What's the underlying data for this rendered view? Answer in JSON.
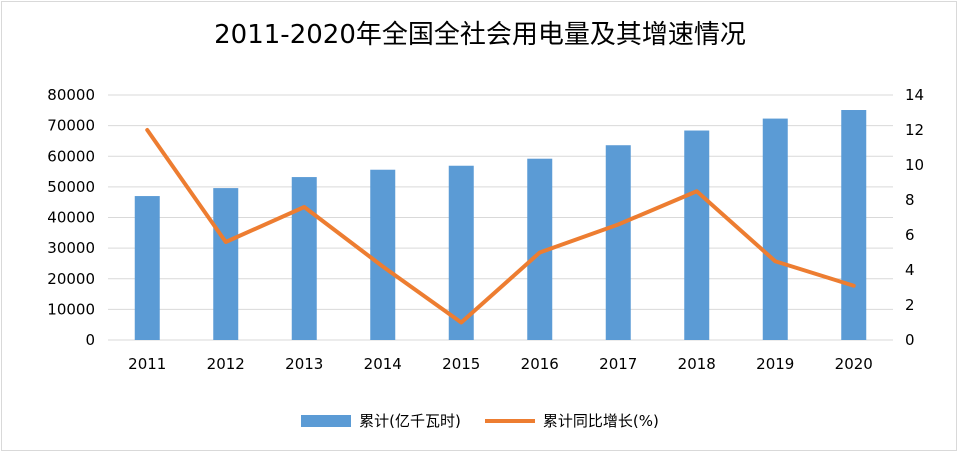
{
  "chart_data": {
    "type": "bar+line",
    "title": "2011-2020年全国全社会用电量及其增速情况",
    "categories": [
      "2011",
      "2012",
      "2013",
      "2014",
      "2015",
      "2016",
      "2017",
      "2018",
      "2019",
      "2020"
    ],
    "series": [
      {
        "name": "累计(亿千瓦时)",
        "type": "bar",
        "axis": "left",
        "color": "#5b9bd5",
        "values": [
          47000,
          49600,
          53200,
          55600,
          56900,
          59200,
          63600,
          68400,
          72300,
          75100
        ]
      },
      {
        "name": "累计同比增长(%)",
        "type": "line",
        "axis": "right",
        "color": "#ed7d31",
        "values": [
          12.0,
          5.6,
          7.6,
          4.2,
          1.0,
          5.0,
          6.6,
          8.5,
          4.5,
          3.1
        ]
      }
    ],
    "y_left": {
      "min": 0,
      "max": 80000,
      "ticks": [
        0,
        10000,
        20000,
        30000,
        40000,
        50000,
        60000,
        70000,
        80000
      ]
    },
    "y_right": {
      "min": 0,
      "max": 14,
      "ticks": [
        0,
        2,
        4,
        6,
        8,
        10,
        12,
        14
      ]
    },
    "grid": true,
    "legend_position": "bottom"
  }
}
